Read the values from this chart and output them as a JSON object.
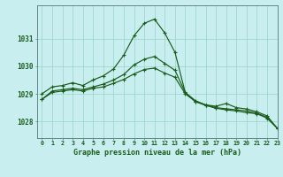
{
  "title": "Graphe pression niveau de la mer (hPa)",
  "bg_color": "#c8eef0",
  "grid_color": "#98d4c8",
  "line_color": "#1a5c1a",
  "xlim": [
    -0.5,
    23
  ],
  "ylim": [
    1027.4,
    1032.2
  ],
  "yticks": [
    1028,
    1029,
    1030,
    1031
  ],
  "xticks": [
    0,
    1,
    2,
    3,
    4,
    5,
    6,
    7,
    8,
    9,
    10,
    11,
    12,
    13,
    14,
    15,
    16,
    17,
    18,
    19,
    20,
    21,
    22,
    23
  ],
  "series1": [
    1029.0,
    1029.25,
    1029.3,
    1029.4,
    1029.3,
    1029.5,
    1029.65,
    1029.9,
    1030.4,
    1031.1,
    1031.55,
    1031.7,
    1031.2,
    1030.5,
    1029.05,
    1028.75,
    1028.6,
    1028.55,
    1028.65,
    1028.5,
    1028.45,
    1028.35,
    1028.2,
    1027.75
  ],
  "series2": [
    1028.8,
    1029.1,
    1029.15,
    1029.2,
    1029.15,
    1029.25,
    1029.35,
    1029.5,
    1029.7,
    1030.05,
    1030.25,
    1030.35,
    1030.1,
    1029.85,
    1029.05,
    1028.72,
    1028.6,
    1028.5,
    1028.46,
    1028.42,
    1028.38,
    1028.3,
    1028.15,
    1027.75
  ],
  "series3": [
    1028.8,
    1029.05,
    1029.1,
    1029.15,
    1029.1,
    1029.2,
    1029.25,
    1029.38,
    1029.52,
    1029.72,
    1029.88,
    1029.93,
    1029.75,
    1029.6,
    1029.0,
    1028.72,
    1028.58,
    1028.48,
    1028.42,
    1028.38,
    1028.32,
    1028.28,
    1028.12,
    1027.75
  ]
}
